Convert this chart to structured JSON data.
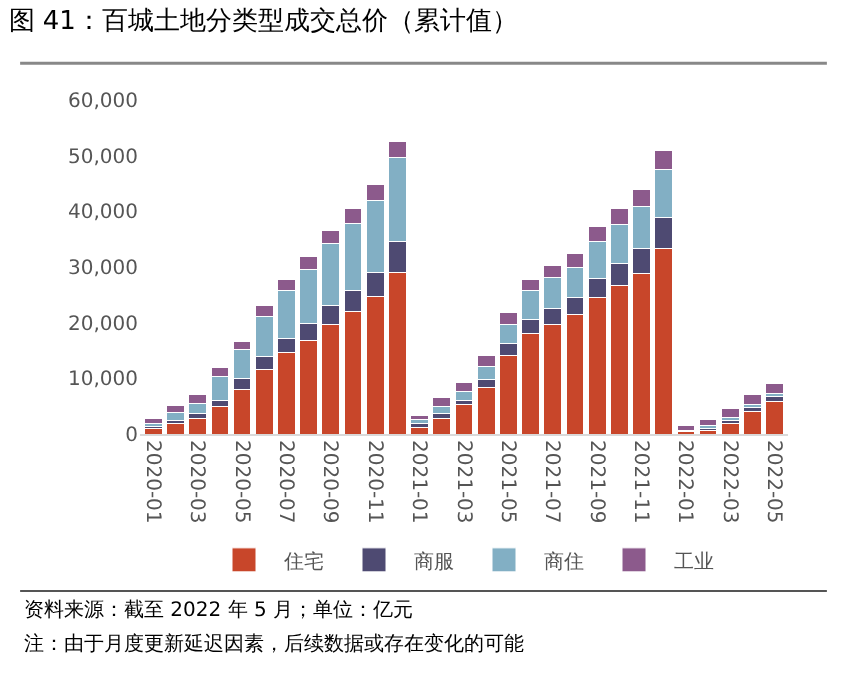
{
  "chart_data": {
    "type": "bar",
    "stacked": true,
    "title": "图 41：百城土地分类型成交总价（累计值）",
    "categories": [
      "2020-01",
      null,
      "2020-03",
      null,
      "2020-05",
      null,
      "2020-07",
      null,
      "2020-09",
      null,
      "2020-11",
      null,
      "2021-01",
      null,
      "2021-03",
      null,
      "2021-05",
      null,
      "2021-07",
      null,
      "2021-09",
      null,
      "2021-11",
      null,
      "2022-01",
      null,
      "2022-03",
      null,
      "2022-05"
    ],
    "series": [
      {
        "name": "住宅",
        "color": "#c8462a",
        "values": [
          1000,
          1800,
          2800,
          4900,
          8000,
          11600,
          14600,
          16800,
          19600,
          22000,
          24700,
          29000,
          1200,
          2800,
          5300,
          8300,
          14100,
          18000,
          19700,
          21400,
          24500,
          26700,
          28900,
          33400,
          400,
          600,
          1800,
          4000,
          5900
        ]
      },
      {
        "name": "商服",
        "color": "#4e4a72",
        "values": [
          400,
          600,
          900,
          1200,
          1900,
          2300,
          2500,
          3000,
          3400,
          3700,
          4300,
          5500,
          600,
          900,
          800,
          1500,
          2200,
          2600,
          2900,
          3100,
          3400,
          3900,
          4500,
          5500,
          200,
          400,
          600,
          800,
          800
        ]
      },
      {
        "name": "商住",
        "color": "#82afc4",
        "values": [
          500,
          1500,
          1800,
          4300,
          5200,
          7200,
          8600,
          9700,
          11300,
          12200,
          12900,
          15100,
          800,
          1200,
          1600,
          2400,
          3400,
          5100,
          5600,
          5500,
          6700,
          7100,
          7500,
          8600,
          100,
          500,
          500,
          500,
          500
        ]
      },
      {
        "name": "工业",
        "color": "#8c5a8c",
        "values": [
          800,
          1200,
          1600,
          1500,
          1500,
          1900,
          2000,
          2300,
          2200,
          2700,
          2900,
          3000,
          800,
          1600,
          1600,
          1900,
          2100,
          2100,
          2000,
          2400,
          2700,
          2900,
          3000,
          3400,
          800,
          1100,
          1600,
          1800,
          1900
        ]
      }
    ],
    "ylim": [
      0,
      60000
    ],
    "yticks": [
      {
        "value": 0,
        "label": "0"
      },
      {
        "value": 10000,
        "label": "10,000"
      },
      {
        "value": 20000,
        "label": "20,000"
      },
      {
        "value": 30000,
        "label": "30,000"
      },
      {
        "value": 40000,
        "label": "40,000"
      },
      {
        "value": 50000,
        "label": "50,000"
      },
      {
        "value": 60000,
        "label": "60,000"
      }
    ],
    "legend": "bottom",
    "annotations": [
      "资料来源：截至 2022 年 5 月；单位：亿元",
      "注：由于月度更新延迟因素，后续数据或存在变化的可能"
    ]
  }
}
